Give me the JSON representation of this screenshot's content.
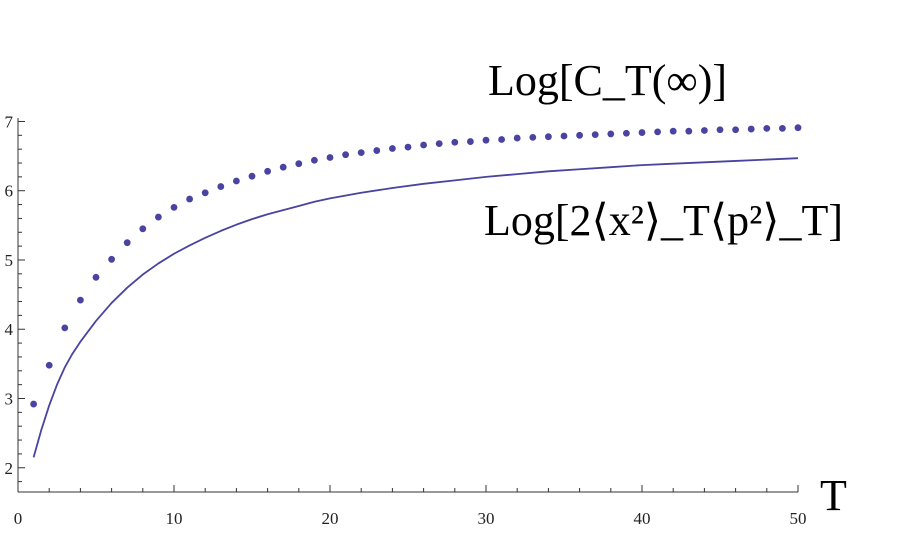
{
  "chart_data": {
    "type": "line",
    "title": "",
    "xlabel": "T",
    "ylabel": "",
    "xlim": [
      0,
      50
    ],
    "ylim": [
      1.65,
      7.05
    ],
    "xticks": [
      0,
      10,
      20,
      30,
      40,
      50
    ],
    "yticks": [
      2,
      3,
      4,
      5,
      6,
      7
    ],
    "grid": false,
    "colors": {
      "series": "#4a43a0"
    },
    "series": [
      {
        "name": "Log[C_T(∞)]",
        "style": "dots",
        "x": [
          1,
          2,
          3,
          4,
          5,
          6,
          7,
          8,
          9,
          10,
          11,
          12,
          13,
          14,
          15,
          16,
          17,
          18,
          19,
          20,
          21,
          22,
          23,
          24,
          25,
          26,
          27,
          28,
          29,
          30,
          31,
          32,
          33,
          34,
          35,
          36,
          37,
          38,
          39,
          40,
          41,
          42,
          43,
          44,
          45,
          46,
          47,
          48,
          49,
          50
        ],
        "values": [
          2.92,
          3.48,
          4.02,
          4.42,
          4.75,
          5.01,
          5.25,
          5.45,
          5.62,
          5.76,
          5.88,
          5.97,
          6.06,
          6.14,
          6.21,
          6.28,
          6.34,
          6.39,
          6.44,
          6.48,
          6.52,
          6.55,
          6.58,
          6.61,
          6.63,
          6.66,
          6.68,
          6.7,
          6.71,
          6.73,
          6.74,
          6.76,
          6.77,
          6.78,
          6.79,
          6.8,
          6.81,
          6.82,
          6.83,
          6.84,
          6.85,
          6.86,
          6.86,
          6.87,
          6.88,
          6.88,
          6.89,
          6.9,
          6.9,
          6.91
        ]
      },
      {
        "name": "Log[2⟨x²⟩_T⟨p²⟩_T]",
        "style": "line",
        "x": [
          1,
          1.5,
          2,
          2.5,
          3,
          3.5,
          4,
          5,
          6,
          7,
          8,
          9,
          10,
          11,
          12,
          13,
          14,
          15,
          16,
          17,
          18,
          19,
          20,
          22,
          24,
          26,
          28,
          30,
          32,
          34,
          36,
          38,
          40,
          42,
          44,
          46,
          48,
          50
        ],
        "values": [
          2.15,
          2.55,
          2.9,
          3.2,
          3.45,
          3.65,
          3.82,
          4.12,
          4.38,
          4.6,
          4.79,
          4.95,
          5.09,
          5.21,
          5.32,
          5.42,
          5.51,
          5.59,
          5.66,
          5.72,
          5.78,
          5.84,
          5.89,
          5.97,
          6.04,
          6.1,
          6.15,
          6.2,
          6.24,
          6.28,
          6.31,
          6.34,
          6.37,
          6.39,
          6.41,
          6.43,
          6.45,
          6.47
        ]
      }
    ]
  }
}
